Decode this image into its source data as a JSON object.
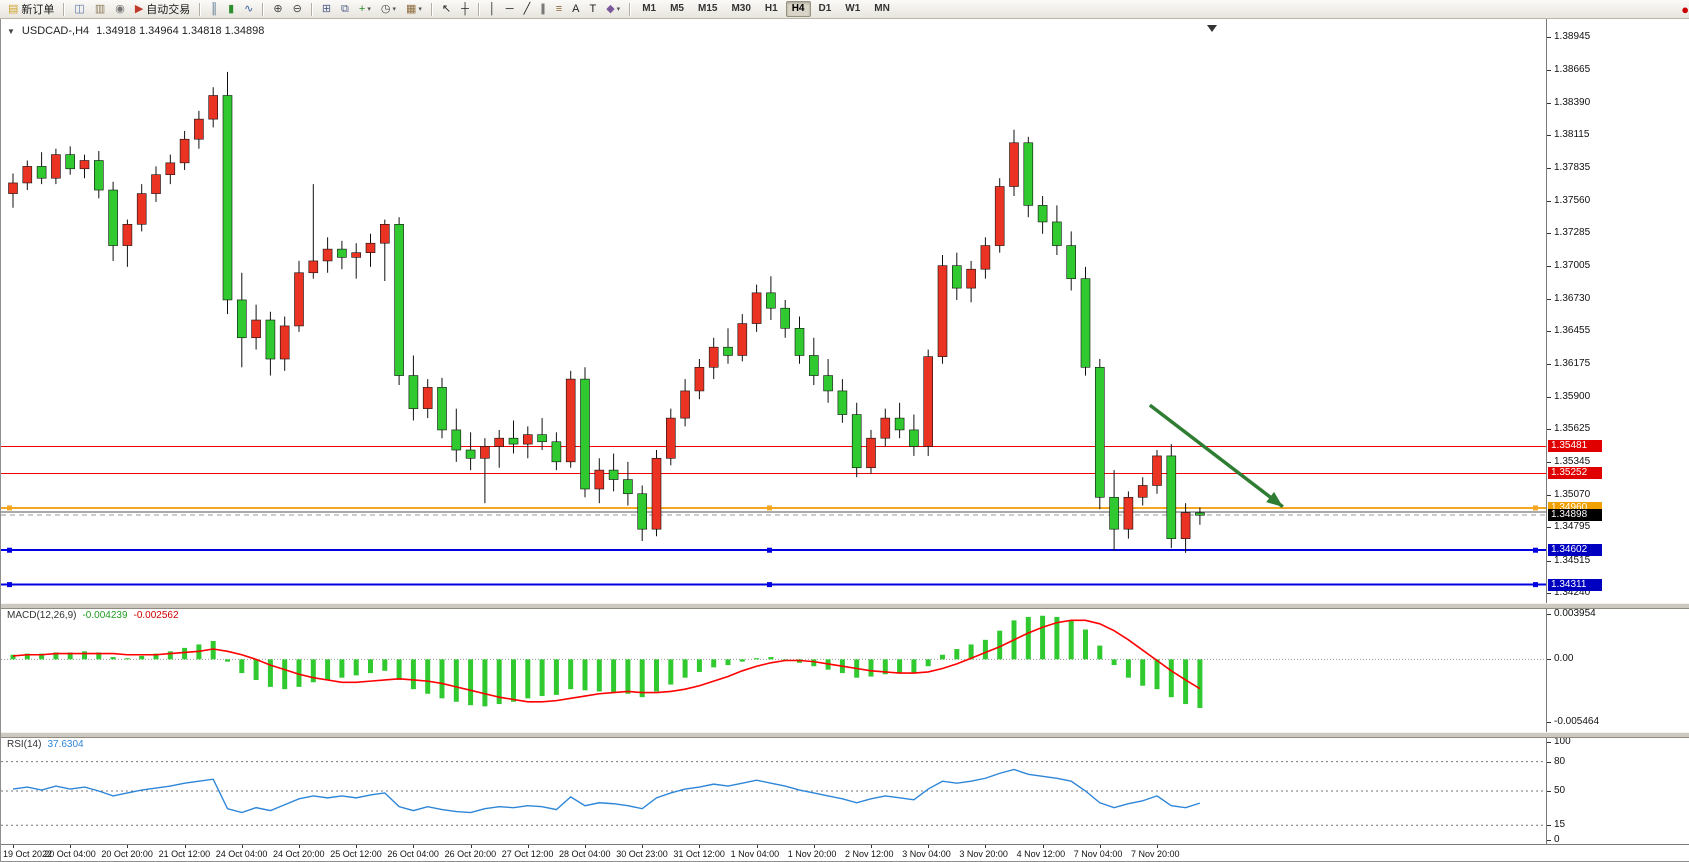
{
  "toolbar": {
    "items": [
      {
        "type": "btn",
        "name": "new-order",
        "glyph": "▤",
        "color": "#caa227",
        "label": "新订单"
      },
      {
        "type": "sep"
      },
      {
        "type": "btn",
        "name": "chart-windows",
        "glyph": "◫",
        "color": "#5b74a8"
      },
      {
        "type": "btn",
        "name": "profiles",
        "glyph": "▥",
        "color": "#8a7a55"
      },
      {
        "type": "btn",
        "name": "sound",
        "glyph": "◉",
        "color": "#777777"
      },
      {
        "type": "btn",
        "name": "auto-trading",
        "glyph": "▶",
        "color": "#c03a2b",
        "label": "自动交易"
      },
      {
        "type": "sep"
      },
      {
        "type": "btn",
        "name": "bar-chart-mode",
        "glyph": "║",
        "color": "#4a6a8a"
      },
      {
        "type": "btn",
        "name": "candlestick-mode",
        "glyph": "▮",
        "color": "#2f8f2f"
      },
      {
        "type": "btn",
        "name": "line-chart-mode",
        "glyph": "∿",
        "color": "#3a62a8"
      },
      {
        "type": "sep"
      },
      {
        "type": "btn",
        "name": "zoom-in",
        "glyph": "⊕",
        "color": "#444444"
      },
      {
        "type": "btn",
        "name": "zoom-out",
        "glyph": "⊖",
        "color": "#444444"
      },
      {
        "type": "sep"
      },
      {
        "type": "btn",
        "name": "tile-windows",
        "glyph": "⊞",
        "color": "#55608a"
      },
      {
        "type": "btn",
        "name": "cascade-windows",
        "glyph": "⧉",
        "color": "#55608a"
      },
      {
        "type": "btn",
        "name": "indicators",
        "glyph": "+",
        "color": "#2e8b2e",
        "dd": true
      },
      {
        "type": "btn",
        "name": "periods",
        "glyph": "◷",
        "color": "#444444",
        "dd": true
      },
      {
        "type": "btn",
        "name": "templates",
        "glyph": "▦",
        "color": "#8a6a3a",
        "dd": true
      },
      {
        "type": "sep"
      },
      {
        "type": "btn",
        "name": "cursor",
        "glyph": "↖",
        "color": "#222222"
      },
      {
        "type": "btn",
        "name": "crosshair",
        "glyph": "┼",
        "color": "#222222"
      },
      {
        "type": "sep"
      },
      {
        "type": "btn",
        "name": "vertical-line",
        "glyph": "│",
        "color": "#222222"
      },
      {
        "type": "btn",
        "name": "horizontal-line",
        "glyph": "─",
        "color": "#222222"
      },
      {
        "type": "btn",
        "name": "trendline",
        "glyph": "╱",
        "color": "#222222"
      },
      {
        "type": "btn",
        "name": "channel",
        "glyph": "∥",
        "color": "#222222"
      },
      {
        "type": "btn",
        "name": "fibonacci",
        "glyph": "≡",
        "color": "#8a6a3a"
      },
      {
        "type": "btn",
        "name": "text",
        "glyph": "A",
        "color": "#222222"
      },
      {
        "type": "btn",
        "name": "text-label",
        "glyph": "T",
        "color": "#222222"
      },
      {
        "type": "btn",
        "name": "arrows",
        "glyph": "◆",
        "color": "#7a5a9a",
        "dd": true
      },
      {
        "type": "sep"
      }
    ],
    "timeframes": [
      "M1",
      "M5",
      "M15",
      "M30",
      "H1",
      "H4",
      "D1",
      "W1",
      "MN"
    ],
    "active_timeframe": "H4",
    "logo_glyphs": [
      "●",
      "●"
    ]
  },
  "chart": {
    "menu_icon": "▼",
    "title": "USDCAD-,H4",
    "ohlc": "1.34918 1.34964 1.34818 1.34898"
  },
  "chart_data": {
    "type": "candlestick",
    "symbol": "USDCAD",
    "timeframe": "H4",
    "colors": {
      "bull": "#ea3323",
      "bear": "#30c930",
      "wick": "#111111",
      "background": "#ffffff"
    },
    "price_axis": {
      "ticks": [
        "1.38945",
        "1.38665",
        "1.38390",
        "1.38115",
        "1.37835",
        "1.37560",
        "1.37285",
        "1.37005",
        "1.36730",
        "1.36455",
        "1.36175",
        "1.35900",
        "1.35625",
        "1.35345",
        "1.35070",
        "1.34795",
        "1.34515",
        "1.34240"
      ]
    },
    "time_axis": {
      "labels": [
        "19 Oct 2022",
        "20 Oct 04:00",
        "20 Oct 20:00",
        "21 Oct 12:00",
        "24 Oct 04:00",
        "24 Oct 20:00",
        "25 Oct 12:00",
        "26 Oct 04:00",
        "26 Oct 20:00",
        "27 Oct 12:00",
        "28 Oct 04:00",
        "30 Oct 23:00",
        "31 Oct 12:00",
        "1 Nov 04:00",
        "1 Nov 20:00",
        "2 Nov 12:00",
        "3 Nov 04:00",
        "3 Nov 20:00",
        "4 Nov 12:00",
        "7 Nov 04:00",
        "7 Nov 20:00"
      ]
    },
    "candles": [
      [
        1.3762,
        1.3779,
        1.375,
        1.3771
      ],
      [
        1.3771,
        1.379,
        1.3765,
        1.3785
      ],
      [
        1.3785,
        1.3797,
        1.377,
        1.3775
      ],
      [
        1.3775,
        1.38,
        1.377,
        1.3795
      ],
      [
        1.3795,
        1.3802,
        1.3778,
        1.3783
      ],
      [
        1.3783,
        1.3795,
        1.3775,
        1.379
      ],
      [
        1.379,
        1.3798,
        1.3758,
        1.3765
      ],
      [
        1.3765,
        1.3772,
        1.3705,
        1.3718
      ],
      [
        1.3718,
        1.374,
        1.37,
        1.3736
      ],
      [
        1.3736,
        1.377,
        1.373,
        1.3762
      ],
      [
        1.3762,
        1.3785,
        1.3755,
        1.3778
      ],
      [
        1.3778,
        1.3795,
        1.377,
        1.3788
      ],
      [
        1.3788,
        1.3815,
        1.3782,
        1.3808
      ],
      [
        1.3808,
        1.3832,
        1.38,
        1.3825
      ],
      [
        1.3825,
        1.3852,
        1.3818,
        1.3845
      ],
      [
        1.3845,
        1.3865,
        1.366,
        1.3672
      ],
      [
        1.3672,
        1.3695,
        1.3615,
        1.364
      ],
      [
        1.364,
        1.3668,
        1.363,
        1.3655
      ],
      [
        1.3655,
        1.3662,
        1.3608,
        1.3622
      ],
      [
        1.3622,
        1.3658,
        1.3612,
        1.365
      ],
      [
        1.365,
        1.3705,
        1.3645,
        1.3695
      ],
      [
        1.3695,
        1.377,
        1.369,
        1.3705
      ],
      [
        1.3705,
        1.3725,
        1.3695,
        1.3715
      ],
      [
        1.3715,
        1.3722,
        1.3698,
        1.3708
      ],
      [
        1.3708,
        1.372,
        1.369,
        1.3712
      ],
      [
        1.3712,
        1.3728,
        1.37,
        1.372
      ],
      [
        1.372,
        1.374,
        1.3688,
        1.3736
      ],
      [
        1.3736,
        1.3742,
        1.36,
        1.3608
      ],
      [
        1.3608,
        1.3625,
        1.357,
        1.358
      ],
      [
        1.358,
        1.3605,
        1.3572,
        1.3598
      ],
      [
        1.3598,
        1.3606,
        1.3555,
        1.3562
      ],
      [
        1.3562,
        1.358,
        1.3535,
        1.3545
      ],
      [
        1.3545,
        1.356,
        1.3528,
        1.3538
      ],
      [
        1.3538,
        1.3555,
        1.35,
        1.3548
      ],
      [
        1.3548,
        1.3562,
        1.353,
        1.3555
      ],
      [
        1.3555,
        1.357,
        1.3542,
        1.355
      ],
      [
        1.355,
        1.3565,
        1.3538,
        1.3558
      ],
      [
        1.3558,
        1.3572,
        1.3545,
        1.3552
      ],
      [
        1.3552,
        1.356,
        1.3528,
        1.3535
      ],
      [
        1.3535,
        1.3612,
        1.353,
        1.3605
      ],
      [
        1.3605,
        1.3615,
        1.3505,
        1.3512
      ],
      [
        1.3512,
        1.3538,
        1.35,
        1.3528
      ],
      [
        1.3528,
        1.3542,
        1.351,
        1.352
      ],
      [
        1.352,
        1.3535,
        1.3498,
        1.3508
      ],
      [
        1.3508,
        1.3515,
        1.3468,
        1.3478
      ],
      [
        1.3478,
        1.3545,
        1.3472,
        1.3538
      ],
      [
        1.3538,
        1.358,
        1.3532,
        1.3572
      ],
      [
        1.3572,
        1.3605,
        1.3565,
        1.3595
      ],
      [
        1.3595,
        1.3622,
        1.3588,
        1.3615
      ],
      [
        1.3615,
        1.364,
        1.3605,
        1.3632
      ],
      [
        1.3632,
        1.3648,
        1.3618,
        1.3625
      ],
      [
        1.3625,
        1.366,
        1.362,
        1.3652
      ],
      [
        1.3652,
        1.3685,
        1.3645,
        1.3678
      ],
      [
        1.3678,
        1.3692,
        1.3655,
        1.3665
      ],
      [
        1.3665,
        1.3672,
        1.364,
        1.3648
      ],
      [
        1.3648,
        1.3658,
        1.3618,
        1.3625
      ],
      [
        1.3625,
        1.364,
        1.36,
        1.3608
      ],
      [
        1.3608,
        1.3622,
        1.3585,
        1.3595
      ],
      [
        1.3595,
        1.3605,
        1.3568,
        1.3575
      ],
      [
        1.3575,
        1.3585,
        1.3522,
        1.353
      ],
      [
        1.353,
        1.3562,
        1.3525,
        1.3555
      ],
      [
        1.3555,
        1.358,
        1.3548,
        1.3572
      ],
      [
        1.3572,
        1.3585,
        1.3555,
        1.3562
      ],
      [
        1.3562,
        1.3575,
        1.354,
        1.3548
      ],
      [
        1.3548,
        1.363,
        1.354,
        1.3624
      ],
      [
        1.3624,
        1.371,
        1.3618,
        1.3701
      ],
      [
        1.3701,
        1.3712,
        1.3672,
        1.3682
      ],
      [
        1.3682,
        1.3705,
        1.367,
        1.3698
      ],
      [
        1.3698,
        1.3725,
        1.369,
        1.3718
      ],
      [
        1.3718,
        1.3775,
        1.3712,
        1.3768
      ],
      [
        1.3768,
        1.3816,
        1.376,
        1.3805
      ],
      [
        1.3805,
        1.381,
        1.3742,
        1.3752
      ],
      [
        1.3752,
        1.376,
        1.3728,
        1.3738
      ],
      [
        1.3738,
        1.3752,
        1.371,
        1.3718
      ],
      [
        1.3718,
        1.373,
        1.368,
        1.369
      ],
      [
        1.369,
        1.37,
        1.3608,
        1.3615
      ],
      [
        1.3615,
        1.3622,
        1.3495,
        1.3505
      ],
      [
        1.3505,
        1.3528,
        1.346,
        1.3478
      ],
      [
        1.3478,
        1.351,
        1.347,
        1.3505
      ],
      [
        1.3505,
        1.3522,
        1.3498,
        1.3515
      ],
      [
        1.3515,
        1.3545,
        1.3508,
        1.354
      ],
      [
        1.354,
        1.355,
        1.3462,
        1.347
      ],
      [
        1.347,
        1.35,
        1.3458,
        1.3492
      ],
      [
        1.34918,
        1.34964,
        1.34818,
        1.34898
      ]
    ],
    "lines": [
      {
        "name": "resistance-line-1",
        "price": 1.35481,
        "color": "#f00000",
        "width": 1,
        "style": "solid",
        "tag": "1.35481",
        "tag_bg": "#e00000"
      },
      {
        "name": "resistance-line-2",
        "price": 1.35252,
        "color": "#f00000",
        "width": 1,
        "style": "solid",
        "tag": "1.35252",
        "tag_bg": "#e00000"
      },
      {
        "name": "support-line-orange",
        "price": 1.3496,
        "color": "#f5a623",
        "width": 2,
        "style": "solid",
        "tag": "1.34960",
        "tag_bg": "#f0a000",
        "handles": true
      },
      {
        "name": "gray-level-line",
        "price": 1.34925,
        "color": "#555555",
        "width": 1,
        "style": "solid"
      },
      {
        "name": "bid-price-line",
        "price": 1.34898,
        "color": "#999999",
        "width": 1,
        "style": "dash",
        "tag": "1.34898",
        "tag_bg": "#000000"
      },
      {
        "name": "support-line-blue-1",
        "price": 1.34602,
        "color": "#0000e0",
        "width": 2,
        "style": "solid",
        "tag": "1.34602",
        "tag_bg": "#0000c0",
        "handles": true
      },
      {
        "name": "support-line-blue-2",
        "price": 1.34311,
        "color": "#0000e0",
        "width": 2,
        "style": "solid",
        "tag": "1.34311",
        "tag_bg": "#0000c0",
        "handles": true
      }
    ],
    "arrow": {
      "from_index": 79.5,
      "from_price": 1.3583,
      "to_index": 88.8,
      "to_price": 1.3497,
      "color": "#2e7d32"
    },
    "macd": {
      "label": "MACD(12,26,9)",
      "main_value": "-0.004239",
      "signal_value": "-0.002562",
      "ticks": [
        "0.003954",
        "0.00",
        "-0.005464"
      ],
      "histogram_color": "#30c930",
      "signal_color": "#ff0000",
      "histogram": [
        0.0004,
        0.0005,
        0.0005,
        0.0006,
        0.0006,
        0.0007,
        0.0006,
        0.0002,
        0.0001,
        0.0003,
        0.0005,
        0.0007,
        0.001,
        0.0013,
        0.0016,
        -0.0002,
        -0.0012,
        -0.0018,
        -0.0024,
        -0.0026,
        -0.0024,
        -0.002,
        -0.0018,
        -0.0016,
        -0.0014,
        -0.0012,
        -0.001,
        -0.0018,
        -0.0026,
        -0.003,
        -0.0034,
        -0.0037,
        -0.004,
        -0.0041,
        -0.0039,
        -0.0037,
        -0.0034,
        -0.0032,
        -0.0031,
        -0.0026,
        -0.0027,
        -0.0028,
        -0.0029,
        -0.003,
        -0.0033,
        -0.0028,
        -0.0022,
        -0.0016,
        -0.0011,
        -0.0007,
        -0.0005,
        -0.0002,
        0.0001,
        0.0002,
        0.0,
        -0.0003,
        -0.0006,
        -0.0009,
        -0.0012,
        -0.0016,
        -0.0015,
        -0.0013,
        -0.0012,
        -0.0012,
        -0.0006,
        0.0004,
        0.0009,
        0.0013,
        0.0017,
        0.0025,
        0.0034,
        0.0037,
        0.0038,
        0.0037,
        0.0034,
        0.0026,
        0.0012,
        -0.0005,
        -0.0016,
        -0.0023,
        -0.0026,
        -0.0033,
        -0.0039,
        -0.004239
      ],
      "signal": [
        0.0003,
        0.0004,
        0.0004,
        0.0005,
        0.0005,
        0.0005,
        0.0005,
        0.0005,
        0.0004,
        0.0004,
        0.0004,
        0.0005,
        0.0006,
        0.0007,
        0.0009,
        0.0007,
        0.0004,
        0.0,
        -0.0005,
        -0.0009,
        -0.0013,
        -0.0016,
        -0.0018,
        -0.002,
        -0.002,
        -0.0019,
        -0.0018,
        -0.0017,
        -0.0018,
        -0.0019,
        -0.0021,
        -0.0024,
        -0.0027,
        -0.003,
        -0.0033,
        -0.0035,
        -0.0037,
        -0.0037,
        -0.0036,
        -0.0034,
        -0.0032,
        -0.003,
        -0.0029,
        -0.0028,
        -0.0029,
        -0.0029,
        -0.0028,
        -0.0026,
        -0.0023,
        -0.0019,
        -0.0015,
        -0.001,
        -0.0006,
        -0.0003,
        -0.0001,
        -0.0001,
        -0.0002,
        -0.0004,
        -0.0006,
        -0.0008,
        -0.001,
        -0.0011,
        -0.0012,
        -0.0012,
        -0.0011,
        -0.0008,
        -0.0004,
        0.0001,
        0.0006,
        0.0011,
        0.0017,
        0.0023,
        0.0028,
        0.0032,
        0.0034,
        0.0034,
        0.0031,
        0.0025,
        0.0017,
        0.0008,
        -0.0001,
        -0.001,
        -0.0018,
        -0.002562
      ]
    },
    "rsi": {
      "label": "RSI(14)",
      "value": "37.6304",
      "ticks": [
        "100",
        "80",
        "50",
        "15",
        "0"
      ],
      "levels": [
        80,
        50,
        15
      ],
      "color": "#2e86d8",
      "values": [
        52,
        54,
        51,
        55,
        52,
        54,
        50,
        45,
        48,
        51,
        53,
        55,
        58,
        60,
        62,
        32,
        28,
        33,
        30,
        36,
        42,
        45,
        43,
        45,
        43,
        46,
        48,
        34,
        30,
        34,
        31,
        29,
        28,
        32,
        34,
        33,
        35,
        34,
        31,
        44,
        35,
        38,
        37,
        35,
        32,
        43,
        48,
        52,
        54,
        57,
        55,
        58,
        61,
        58,
        55,
        51,
        48,
        45,
        42,
        38,
        42,
        45,
        43,
        41,
        52,
        60,
        58,
        60,
        63,
        68,
        72,
        67,
        65,
        63,
        60,
        50,
        38,
        33,
        37,
        40,
        45,
        35,
        33,
        37.63
      ]
    }
  }
}
